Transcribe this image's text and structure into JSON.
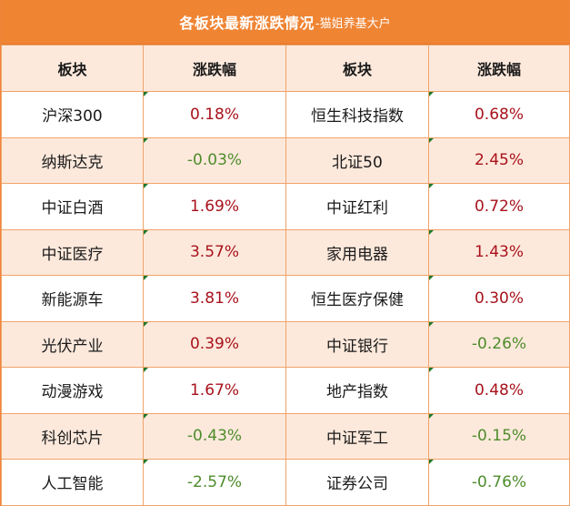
{
  "header": {
    "title": "各板块最新涨跌情况",
    "subtitle": "-猫姐养基大户"
  },
  "columns": [
    "板块",
    "涨跌幅",
    "板块",
    "涨跌幅"
  ],
  "rows": [
    {
      "left_name": "沪深300",
      "left_change": "0.18%",
      "left_dir": "pos",
      "right_name": "恒生科技指数",
      "right_change": "0.68%",
      "right_dir": "pos"
    },
    {
      "left_name": "纳斯达克",
      "left_change": "-0.03%",
      "left_dir": "neg",
      "right_name": "北证50",
      "right_change": "2.45%",
      "right_dir": "pos"
    },
    {
      "left_name": "中证白酒",
      "left_change": "1.69%",
      "left_dir": "pos",
      "right_name": "中证红利",
      "right_change": "0.72%",
      "right_dir": "pos"
    },
    {
      "left_name": "中证医疗",
      "left_change": "3.57%",
      "left_dir": "pos",
      "right_name": "家用电器",
      "right_change": "1.43%",
      "right_dir": "pos"
    },
    {
      "left_name": "新能源车",
      "left_change": "3.81%",
      "left_dir": "pos",
      "right_name": "恒生医疗保健",
      "right_change": "0.30%",
      "right_dir": "pos"
    },
    {
      "left_name": "光伏产业",
      "left_change": "0.39%",
      "left_dir": "pos",
      "right_name": "中证银行",
      "right_change": "-0.26%",
      "right_dir": "neg"
    },
    {
      "left_name": "动漫游戏",
      "left_change": "1.67%",
      "left_dir": "pos",
      "right_name": "地产指数",
      "right_change": "0.48%",
      "right_dir": "pos"
    },
    {
      "left_name": "科创芯片",
      "left_change": "-0.43%",
      "left_dir": "neg",
      "right_name": "中证军工",
      "right_change": "-0.15%",
      "right_dir": "neg"
    },
    {
      "left_name": "人工智能",
      "left_change": "-2.57%",
      "left_dir": "neg",
      "right_name": "证券公司",
      "right_change": "-0.76%",
      "right_dir": "neg"
    }
  ],
  "colors": {
    "header_bg": "#ef8433",
    "band_bg": "#fde9dc",
    "positive": "#a8121b",
    "negative": "#4e8c2b",
    "border": "#f0a36a"
  }
}
